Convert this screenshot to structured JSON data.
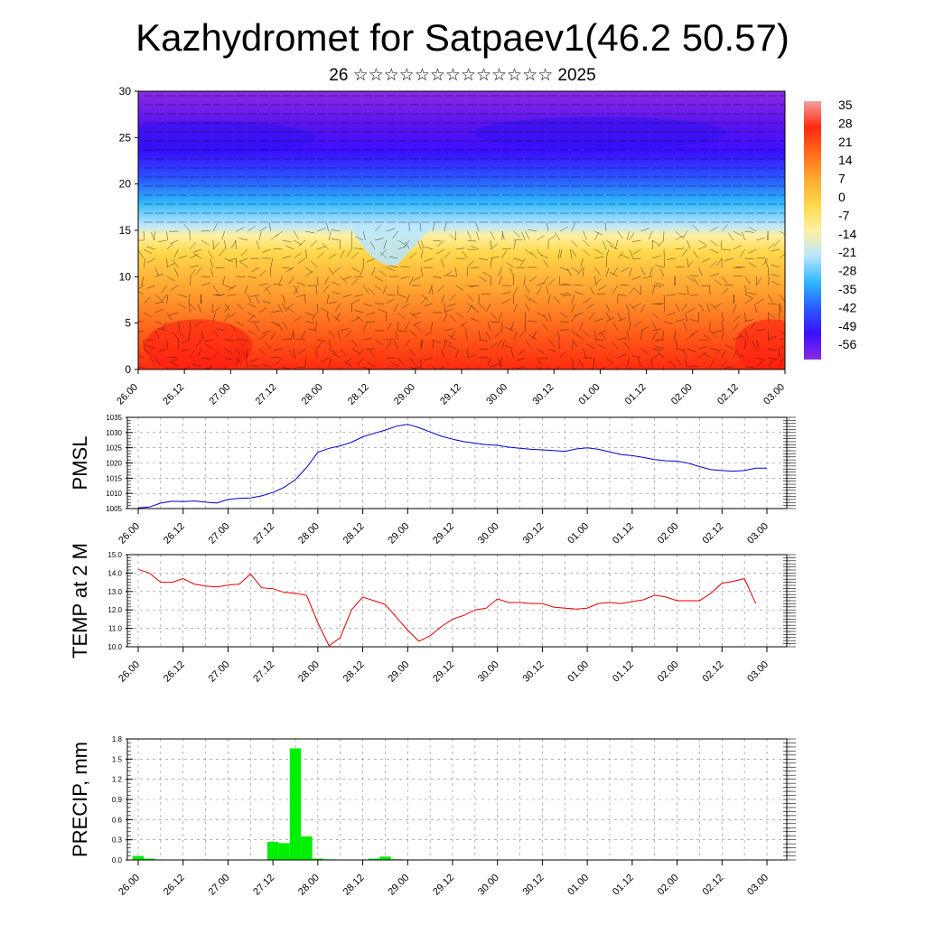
{
  "header": {
    "title": "Kazhydromet for Satpaev1(46.2 50.57)",
    "subtitle": "26 ☆☆☆☆☆☆☆☆☆☆☆☆☆ 2025"
  },
  "time_axis_labels": [
    "26.00",
    "26.12",
    "27.00",
    "27.12",
    "28.00",
    "28.12",
    "29.00",
    "29.12",
    "30.00",
    "30.12",
    "01.00",
    "01.12",
    "02.00",
    "02.12",
    "03.00"
  ],
  "chart_data": [
    {
      "type": "heatmap",
      "title": "",
      "xlabel": "",
      "ylabel": "",
      "x_tick_labels": [
        "26.00",
        "26.12",
        "27.00",
        "27.12",
        "28.00",
        "28.12",
        "29.00",
        "29.12",
        "30.00",
        "30.12",
        "01.00",
        "01.12",
        "02.00",
        "02.12",
        "03.00"
      ],
      "ylim": [
        0,
        30
      ],
      "y_ticks": [
        0,
        5,
        10,
        15,
        20,
        25,
        30
      ],
      "colorbar": {
        "labels": [
          "35",
          "28",
          "21",
          "14",
          "7",
          "0",
          "-7",
          "-14",
          "-21",
          "-28",
          "-35",
          "-42",
          "-49",
          "-56"
        ],
        "range": [
          -63,
          42
        ],
        "colors": [
          "#8a2be2",
          "#3a10ff",
          "#2a5cff",
          "#30b8ff",
          "#b8e6ff",
          "#fff0a0",
          "#ffd84a",
          "#ffaa30",
          "#ff6a1a",
          "#ff2a10",
          "#f4a0a0"
        ]
      },
      "overlay": "wind barbs",
      "profile_points": [
        [
          0,
          18
        ],
        [
          5,
          15
        ],
        [
          10,
          6
        ],
        [
          15,
          -6
        ],
        [
          18,
          -22
        ],
        [
          20,
          -35
        ],
        [
          22,
          -48
        ],
        [
          24,
          -55
        ],
        [
          26,
          -55
        ],
        [
          30,
          -60
        ]
      ]
    },
    {
      "type": "line",
      "ylabel": "PMSL",
      "ylim": [
        1005,
        1035
      ],
      "y_ticks": [
        1005,
        1010,
        1015,
        1020,
        1025,
        1030,
        1035
      ],
      "x_tick_labels": [
        "26.00",
        "26.12",
        "27.00",
        "27.12",
        "28.00",
        "28.12",
        "29.00",
        "29.12",
        "30.00",
        "30.12",
        "01.00",
        "01.12",
        "02.00",
        "02.12",
        "03.00"
      ],
      "color": "#0000cc",
      "x": [
        0,
        0.25,
        0.5,
        0.75,
        1,
        1.25,
        1.5,
        1.75,
        2,
        2.25,
        2.5,
        2.75,
        3,
        3.25,
        3.5,
        3.75,
        4,
        4.25,
        4.5,
        4.75,
        5,
        5.25,
        5.5,
        5.75,
        6,
        6.25,
        6.5,
        6.75,
        7,
        7.25,
        7.5,
        7.75,
        8,
        8.25,
        8.5,
        8.75,
        9,
        9.25,
        9.5,
        9.75,
        10,
        10.25,
        10.5,
        10.75,
        11,
        11.25,
        11.5,
        11.75,
        12,
        12.25,
        12.5,
        12.75,
        13,
        13.25,
        13.5,
        13.75,
        14
      ],
      "values": [
        1005.2,
        1005.5,
        1006.8,
        1007.4,
        1007.3,
        1007.5,
        1007.1,
        1006.8,
        1008.0,
        1008.4,
        1008.5,
        1009.2,
        1010.3,
        1012.0,
        1014.5,
        1018.5,
        1023.5,
        1024.8,
        1025.6,
        1026.8,
        1028.6,
        1029.7,
        1030.8,
        1032.1,
        1032.7,
        1031.6,
        1030.2,
        1028.8,
        1027.8,
        1027.0,
        1026.5,
        1026.0,
        1025.8,
        1025.2,
        1024.8,
        1024.5,
        1024.3,
        1024.1,
        1023.8,
        1024.6,
        1025.0,
        1024.5,
        1023.6,
        1022.8,
        1022.4,
        1021.8,
        1021.1,
        1020.7,
        1020.6,
        1019.9,
        1018.8,
        1017.8,
        1017.5,
        1017.3,
        1017.5,
        1018.3,
        1018.3
      ]
    },
    {
      "type": "line",
      "ylabel": "TEMP at 2 M",
      "ylim": [
        10.0,
        15.0
      ],
      "y_ticks": [
        "10.0",
        "11.0",
        "12.0",
        "13.0",
        "14.0",
        "15.0"
      ],
      "x_tick_labels": [
        "26.00",
        "26.12",
        "27.00",
        "27.12",
        "28.00",
        "28.12",
        "29.00",
        "29.12",
        "30.00",
        "30.12",
        "01.00",
        "01.12",
        "02.00",
        "02.12",
        "03.00"
      ],
      "color": "#e00000",
      "x": [
        0,
        0.25,
        0.5,
        0.75,
        1,
        1.25,
        1.5,
        1.75,
        2,
        2.25,
        2.5,
        2.75,
        3,
        3.25,
        3.5,
        3.75,
        4,
        4.25,
        4.5,
        4.75,
        5,
        5.25,
        5.5,
        5.75,
        6,
        6.25,
        6.5,
        6.75,
        7,
        7.25,
        7.5,
        7.75,
        8,
        8.25,
        8.5,
        8.75,
        9,
        9.25,
        9.5,
        9.75,
        10,
        10.25,
        10.5,
        10.75,
        11,
        11.25,
        11.5,
        11.75,
        12,
        12.25,
        12.5,
        12.75,
        13,
        13.25,
        13.5,
        13.75
      ],
      "values": [
        14.2,
        14.0,
        13.5,
        13.5,
        13.7,
        13.4,
        13.3,
        13.25,
        13.35,
        13.4,
        13.95,
        13.2,
        13.15,
        12.95,
        12.9,
        12.8,
        11.3,
        10.05,
        10.5,
        12.0,
        12.7,
        12.5,
        12.3,
        11.6,
        10.9,
        10.3,
        10.6,
        11.1,
        11.5,
        11.7,
        12.0,
        12.1,
        12.6,
        12.4,
        12.4,
        12.35,
        12.35,
        12.15,
        12.1,
        12.05,
        12.1,
        12.35,
        12.4,
        12.35,
        12.45,
        12.55,
        12.8,
        12.7,
        12.5,
        12.5,
        12.5,
        12.9,
        13.45,
        13.55,
        13.7,
        12.35
      ]
    },
    {
      "type": "bar",
      "ylabel": "PRECIP, mm",
      "ylim": [
        0.0,
        1.8
      ],
      "y_ticks": [
        "0.0",
        "0.3",
        "0.6",
        "0.9",
        "1.2",
        "1.5",
        "1.8"
      ],
      "x_tick_labels": [
        "26.00",
        "26.12",
        "27.00",
        "27.12",
        "28.00",
        "28.12",
        "29.00",
        "29.12",
        "30.00",
        "30.12",
        "01.00",
        "01.12",
        "02.00",
        "02.12",
        "03.00"
      ],
      "color": "#00ee00",
      "x": [
        0,
        0.25,
        3,
        3.25,
        3.5,
        3.75,
        4,
        4.25,
        5.25,
        5.5,
        5.75
      ],
      "values": [
        0.06,
        0.02,
        0.27,
        0.25,
        1.66,
        0.35,
        0.02,
        0.01,
        0.02,
        0.05,
        0.01
      ]
    }
  ]
}
